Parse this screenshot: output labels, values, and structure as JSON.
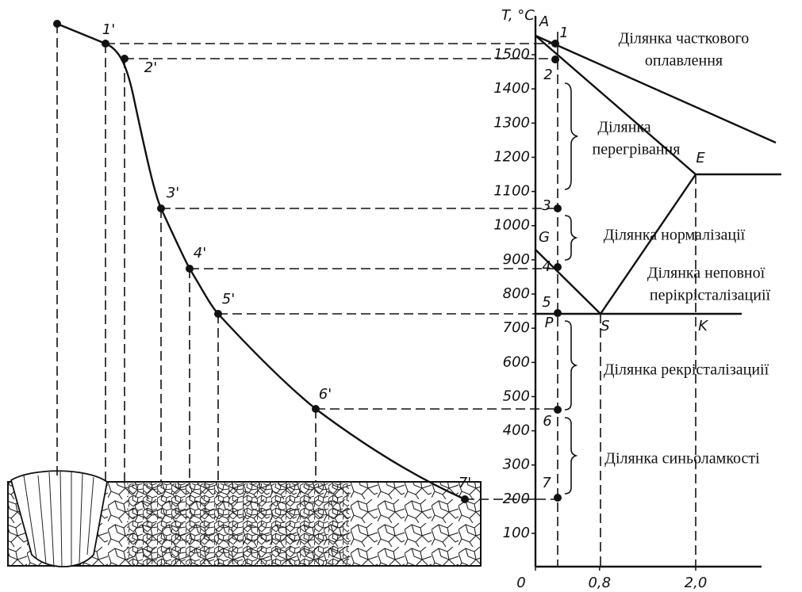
{
  "axis": {
    "label": "T, °C",
    "ticks": [
      100,
      200,
      300,
      400,
      500,
      600,
      700,
      800,
      900,
      1000,
      1100,
      1200,
      1300,
      1400,
      1500
    ],
    "x_ticks": [
      0,
      {
        "value": 0.8,
        "label": "0,8"
      },
      {
        "value": 2.0,
        "label": "2,0"
      }
    ]
  },
  "curve_points": [
    "1'",
    "2'",
    "3'",
    "4'",
    "5'",
    "6'",
    "7'"
  ],
  "axis_points": [
    "1",
    "2",
    "3",
    "4",
    "5",
    "6",
    "7"
  ],
  "diagram_letters": [
    "A",
    "G",
    "P",
    "S",
    "K",
    "E"
  ],
  "zones": [
    [
      "Ділянка часткового",
      "оплавлення"
    ],
    [
      "Ділянка",
      "перегрівання"
    ],
    [
      "Ділянка нормалізації"
    ],
    [
      "Ділянка неповної",
      "перікрісталізациії"
    ],
    [
      "Ділянка рекрісталізациії"
    ],
    [
      "Ділянка синьоламкості"
    ]
  ]
}
